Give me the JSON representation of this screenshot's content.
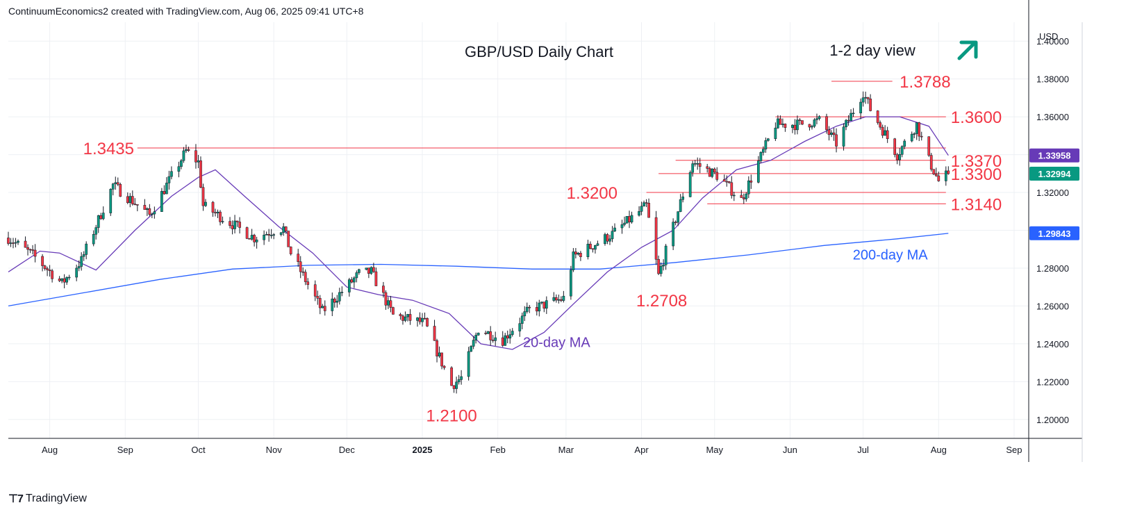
{
  "header": {
    "attribution": "ContinuumEconomics2 created with TradingView.com, Aug 06, 2025 09:41 UTC+8"
  },
  "footer": {
    "brand": "TradingView",
    "logo_icon": "tradingview-logo-icon"
  },
  "colors": {
    "up": "#089981",
    "down": "#f23645",
    "ma20": "#673ab7",
    "ma200": "#2962ff",
    "level_line": "#f23645",
    "level_text": "#f23645",
    "grid": "#eef0f4",
    "axis_text": "#131722",
    "arrow": "#089981"
  },
  "chart_data": {
    "type": "candlestick",
    "title": "GBP/USD Daily Chart",
    "view_label": "1-2 day view",
    "direction_icon": "arrow-up-right-icon",
    "currency": "USD",
    "ylim": [
      1.19,
      1.41
    ],
    "y_ticks": [
      "1.40000",
      "1.38000",
      "1.36000",
      "1.34000",
      "1.32000",
      "1.30000",
      "1.28000",
      "1.26000",
      "1.24000",
      "1.22000",
      "1.20000"
    ],
    "x_ticks": [
      {
        "label": "Aug",
        "date": "2024-08-01"
      },
      {
        "label": "Sep",
        "date": "2024-09-01"
      },
      {
        "label": "Oct",
        "date": "2024-10-01"
      },
      {
        "label": "Nov",
        "date": "2024-11-01"
      },
      {
        "label": "Dec",
        "date": "2024-12-01"
      },
      {
        "label": "2025",
        "date": "2025-01-01"
      },
      {
        "label": "Feb",
        "date": "2025-02-01"
      },
      {
        "label": "Mar",
        "date": "2025-03-01"
      },
      {
        "label": "Apr",
        "date": "2025-04-01"
      },
      {
        "label": "May",
        "date": "2025-05-01"
      },
      {
        "label": "Jun",
        "date": "2025-06-01"
      },
      {
        "label": "Jul",
        "date": "2025-07-01"
      },
      {
        "label": "Aug",
        "date": "2025-08-01"
      },
      {
        "label": "Sep",
        "date": "2025-09-01"
      }
    ],
    "price_badges": [
      {
        "label": "1.33958",
        "value": 1.33958,
        "color": "#673ab7"
      },
      {
        "label": "1.32994",
        "value": 1.32994,
        "color": "#089981"
      },
      {
        "label": "1.29843",
        "value": 1.29843,
        "color": "#2962ff"
      }
    ],
    "levels": [
      {
        "label": "1.3788",
        "value": 1.3788,
        "from": "2025-06-18",
        "to": "2025-07-13"
      },
      {
        "label": "1.3600",
        "value": 1.36,
        "from": "2025-05-26",
        "to": "2025-08-04"
      },
      {
        "label": "1.3435",
        "value": 1.3435,
        "from": "2024-09-06",
        "to": "2025-08-04"
      },
      {
        "label": "1.3370",
        "value": 1.337,
        "from": "2025-04-15",
        "to": "2025-08-04"
      },
      {
        "label": "1.3300",
        "value": 1.33,
        "from": "2025-04-08",
        "to": "2025-08-04"
      },
      {
        "label": "1.3200",
        "value": 1.32,
        "from": "2025-04-03",
        "to": "2025-08-04"
      },
      {
        "label": "1.3140",
        "value": 1.314,
        "from": "2025-04-28",
        "to": "2025-08-04"
      }
    ],
    "annotations": [
      {
        "label": "1.2100",
        "date": "2025-01-13",
        "value": 1.21
      },
      {
        "label": "1.2708",
        "date": "2025-04-07",
        "value": 1.2708
      },
      {
        "label": "20-day MA",
        "date": "2025-02-28",
        "value": 1.2412,
        "color": "#673ab7"
      },
      {
        "label": "200-day MA",
        "date": "2025-07-15",
        "value": 1.2875,
        "color": "#2962ff"
      }
    ],
    "anchors": [
      {
        "date": "2024-07-15",
        "value": 1.296
      },
      {
        "date": "2024-07-25",
        "value": 1.287
      },
      {
        "date": "2024-08-06",
        "value": 1.272
      },
      {
        "date": "2024-08-14",
        "value": 1.284
      },
      {
        "date": "2024-08-27",
        "value": 1.324
      },
      {
        "date": "2024-09-11",
        "value": 1.308
      },
      {
        "date": "2024-09-26",
        "value": 1.342
      },
      {
        "date": "2024-10-01",
        "value": 1.336
      },
      {
        "date": "2024-10-03",
        "value": 1.313
      },
      {
        "date": "2024-10-24",
        "value": 1.296
      },
      {
        "date": "2024-11-01",
        "value": 1.3
      },
      {
        "date": "2024-11-05",
        "value": 1.301
      },
      {
        "date": "2024-11-08",
        "value": 1.288
      },
      {
        "date": "2024-11-21",
        "value": 1.257
      },
      {
        "date": "2024-12-06",
        "value": 1.277
      },
      {
        "date": "2024-12-11",
        "value": 1.278
      },
      {
        "date": "2024-12-20",
        "value": 1.255
      },
      {
        "date": "2025-01-02",
        "value": 1.251
      },
      {
        "date": "2025-01-13",
        "value": 1.218
      },
      {
        "date": "2025-01-17",
        "value": 1.222
      },
      {
        "date": "2025-01-24",
        "value": 1.248
      },
      {
        "date": "2025-02-03",
        "value": 1.242
      },
      {
        "date": "2025-02-14",
        "value": 1.258
      },
      {
        "date": "2025-02-28",
        "value": 1.264
      },
      {
        "date": "2025-03-04",
        "value": 1.286
      },
      {
        "date": "2025-03-20",
        "value": 1.298
      },
      {
        "date": "2025-04-03",
        "value": 1.313
      },
      {
        "date": "2025-04-08",
        "value": 1.276
      },
      {
        "date": "2025-04-22",
        "value": 1.336
      },
      {
        "date": "2025-05-02",
        "value": 1.329
      },
      {
        "date": "2025-05-12",
        "value": 1.316
      },
      {
        "date": "2025-05-26",
        "value": 1.356
      },
      {
        "date": "2025-06-05",
        "value": 1.356
      },
      {
        "date": "2025-06-13",
        "value": 1.358
      },
      {
        "date": "2025-06-20",
        "value": 1.346
      },
      {
        "date": "2025-07-01",
        "value": 1.373
      },
      {
        "date": "2025-07-04",
        "value": 1.364
      },
      {
        "date": "2025-07-15",
        "value": 1.34
      },
      {
        "date": "2025-07-23",
        "value": 1.356
      },
      {
        "date": "2025-07-28",
        "value": 1.337
      },
      {
        "date": "2025-08-01",
        "value": 1.326
      },
      {
        "date": "2025-08-05",
        "value": 1.3299
      }
    ],
    "ma20": [
      {
        "date": "2024-07-15",
        "value": 1.278
      },
      {
        "date": "2024-07-28",
        "value": 1.289
      },
      {
        "date": "2024-08-05",
        "value": 1.288
      },
      {
        "date": "2024-08-20",
        "value": 1.279
      },
      {
        "date": "2024-09-05",
        "value": 1.3
      },
      {
        "date": "2024-09-20",
        "value": 1.318
      },
      {
        "date": "2024-10-01",
        "value": 1.328
      },
      {
        "date": "2024-10-08",
        "value": 1.332
      },
      {
        "date": "2024-10-20",
        "value": 1.318
      },
      {
        "date": "2024-11-03",
        "value": 1.302
      },
      {
        "date": "2024-11-17",
        "value": 1.288
      },
      {
        "date": "2024-12-01",
        "value": 1.27
      },
      {
        "date": "2024-12-14",
        "value": 1.266
      },
      {
        "date": "2024-12-28",
        "value": 1.263
      },
      {
        "date": "2025-01-12",
        "value": 1.256
      },
      {
        "date": "2025-01-25",
        "value": 1.24
      },
      {
        "date": "2025-02-07",
        "value": 1.237
      },
      {
        "date": "2025-02-20",
        "value": 1.246
      },
      {
        "date": "2025-03-04",
        "value": 1.261
      },
      {
        "date": "2025-03-18",
        "value": 1.278
      },
      {
        "date": "2025-04-01",
        "value": 1.291
      },
      {
        "date": "2025-04-14",
        "value": 1.3
      },
      {
        "date": "2025-04-26",
        "value": 1.317
      },
      {
        "date": "2025-05-10",
        "value": 1.332
      },
      {
        "date": "2025-05-24",
        "value": 1.337
      },
      {
        "date": "2025-06-07",
        "value": 1.347
      },
      {
        "date": "2025-06-20",
        "value": 1.355
      },
      {
        "date": "2025-07-02",
        "value": 1.36
      },
      {
        "date": "2025-07-16",
        "value": 1.36
      },
      {
        "date": "2025-07-28",
        "value": 1.355
      },
      {
        "date": "2025-08-05",
        "value": 1.3396
      }
    ],
    "ma200": [
      {
        "date": "2024-07-15",
        "value": 1.26
      },
      {
        "date": "2024-08-15",
        "value": 1.267
      },
      {
        "date": "2024-09-15",
        "value": 1.274
      },
      {
        "date": "2024-10-15",
        "value": 1.2795
      },
      {
        "date": "2024-11-15",
        "value": 1.2815
      },
      {
        "date": "2024-12-15",
        "value": 1.282
      },
      {
        "date": "2025-01-15",
        "value": 1.281
      },
      {
        "date": "2025-02-15",
        "value": 1.2795
      },
      {
        "date": "2025-03-15",
        "value": 1.2795
      },
      {
        "date": "2025-04-15",
        "value": 1.283
      },
      {
        "date": "2025-05-15",
        "value": 1.287
      },
      {
        "date": "2025-06-15",
        "value": 1.292
      },
      {
        "date": "2025-07-15",
        "value": 1.2955
      },
      {
        "date": "2025-08-05",
        "value": 1.2984
      }
    ]
  }
}
